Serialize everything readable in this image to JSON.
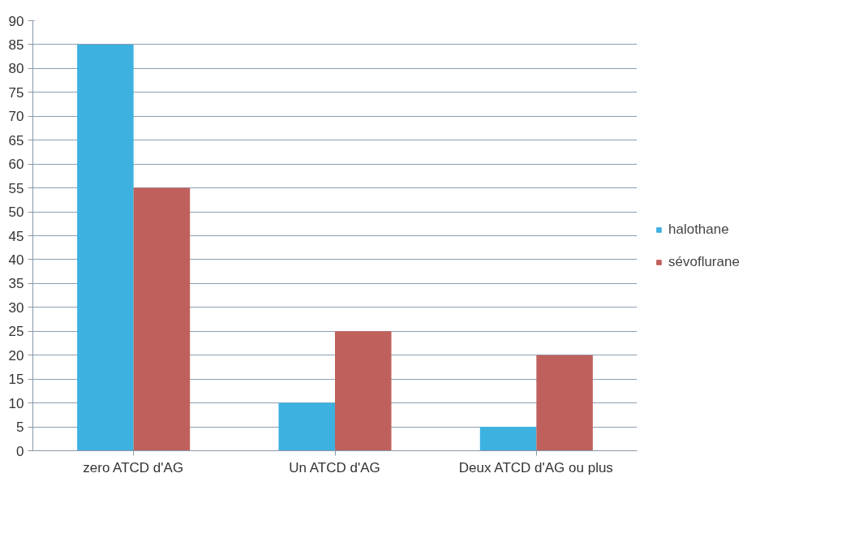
{
  "chart_data": {
    "type": "bar",
    "categories": [
      "zero ATCD d'AG",
      "Un ATCD d'AG",
      "Deux ATCD d'AG ou plus"
    ],
    "series": [
      {
        "name": "halothane",
        "color": "#3db1e0",
        "values": [
          85,
          10,
          5
        ]
      },
      {
        "name": "sévoflurane",
        "color": "#c0605c",
        "values": [
          55,
          25,
          20
        ]
      }
    ],
    "ylim": [
      0,
      90
    ],
    "yticks": [
      0,
      5,
      10,
      15,
      20,
      25,
      30,
      35,
      40,
      45,
      50,
      55,
      60,
      65,
      70,
      75,
      80,
      85,
      90
    ],
    "grid": "y",
    "legend": "right"
  }
}
